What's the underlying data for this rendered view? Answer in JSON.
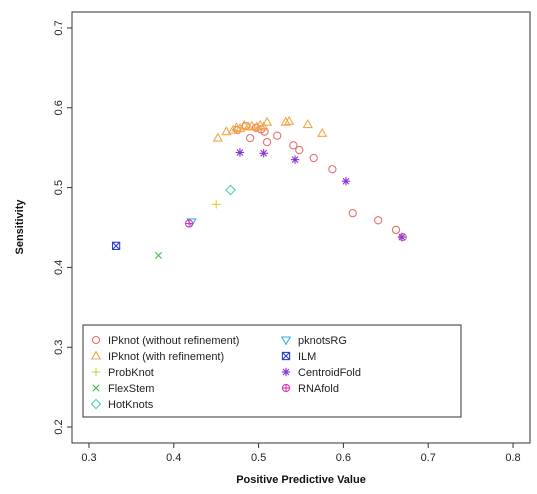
{
  "chart_data": {
    "type": "scatter",
    "title": "",
    "xlabel": "Positive Predictive Value",
    "ylabel": "Sensitivity",
    "xlim": [
      0.28,
      0.82
    ],
    "ylim": [
      0.18,
      0.72
    ],
    "xticks": [
      "0.3",
      "0.4",
      "0.5",
      "0.6",
      "0.7",
      "0.8"
    ],
    "xtick_values": [
      0.3,
      0.4,
      0.5,
      0.6,
      0.7,
      0.8
    ],
    "yticks": [
      "0.2",
      "0.3",
      "0.4",
      "0.5",
      "0.6",
      "0.7"
    ],
    "ytick_values": [
      0.2,
      0.3,
      0.4,
      0.5,
      0.6,
      0.7
    ],
    "grid": false,
    "legend_position": "bottom-left",
    "series": [
      {
        "name": "IPknot (without refinement)",
        "marker": "circle",
        "color": "#e8716f",
        "points": [
          [
            0.475,
            0.572
          ],
          [
            0.485,
            0.577
          ],
          [
            0.49,
            0.562
          ],
          [
            0.497,
            0.575
          ],
          [
            0.503,
            0.573
          ],
          [
            0.507,
            0.57
          ],
          [
            0.51,
            0.557
          ],
          [
            0.522,
            0.565
          ],
          [
            0.541,
            0.553
          ],
          [
            0.548,
            0.547
          ],
          [
            0.565,
            0.537
          ],
          [
            0.587,
            0.523
          ],
          [
            0.611,
            0.468
          ],
          [
            0.641,
            0.459
          ],
          [
            0.662,
            0.447
          ],
          [
            0.67,
            0.438
          ]
        ]
      },
      {
        "name": "IPknot (with refinement)",
        "marker": "triangle-up",
        "color": "#f0a94a",
        "points": [
          [
            0.452,
            0.562
          ],
          [
            0.462,
            0.57
          ],
          [
            0.47,
            0.572
          ],
          [
            0.474,
            0.575
          ],
          [
            0.478,
            0.574
          ],
          [
            0.483,
            0.578
          ],
          [
            0.488,
            0.576
          ],
          [
            0.492,
            0.577
          ],
          [
            0.498,
            0.576
          ],
          [
            0.502,
            0.578
          ],
          [
            0.506,
            0.576
          ],
          [
            0.51,
            0.582
          ],
          [
            0.532,
            0.582
          ],
          [
            0.536,
            0.583
          ],
          [
            0.558,
            0.579
          ],
          [
            0.575,
            0.568
          ]
        ]
      },
      {
        "name": "ProbKnot",
        "marker": "plus",
        "color": "#d6cf3a",
        "points": [
          [
            0.45,
            0.479
          ]
        ]
      },
      {
        "name": "FlexStem",
        "marker": "cross",
        "color": "#3fbf4a",
        "points": [
          [
            0.382,
            0.415
          ]
        ]
      },
      {
        "name": "HotKnots",
        "marker": "diamond",
        "color": "#4dd1b0",
        "points": [
          [
            0.467,
            0.497
          ]
        ]
      },
      {
        "name": "pknotsRG",
        "marker": "triangle-down",
        "color": "#3aaee6",
        "points": [
          [
            0.421,
            0.457
          ]
        ]
      },
      {
        "name": "ILM",
        "marker": "square-x",
        "color": "#2b3fbf",
        "points": [
          [
            0.332,
            0.427
          ]
        ]
      },
      {
        "name": "CentroidFold",
        "marker": "asterisk",
        "color": "#8a2fd6",
        "points": [
          [
            0.478,
            0.544
          ],
          [
            0.506,
            0.543
          ],
          [
            0.543,
            0.535
          ],
          [
            0.603,
            0.508
          ],
          [
            0.669,
            0.438
          ]
        ]
      },
      {
        "name": "RNAfold",
        "marker": "circle-plus",
        "color": "#d63ab8",
        "points": [
          [
            0.418,
            0.455
          ]
        ]
      }
    ]
  }
}
